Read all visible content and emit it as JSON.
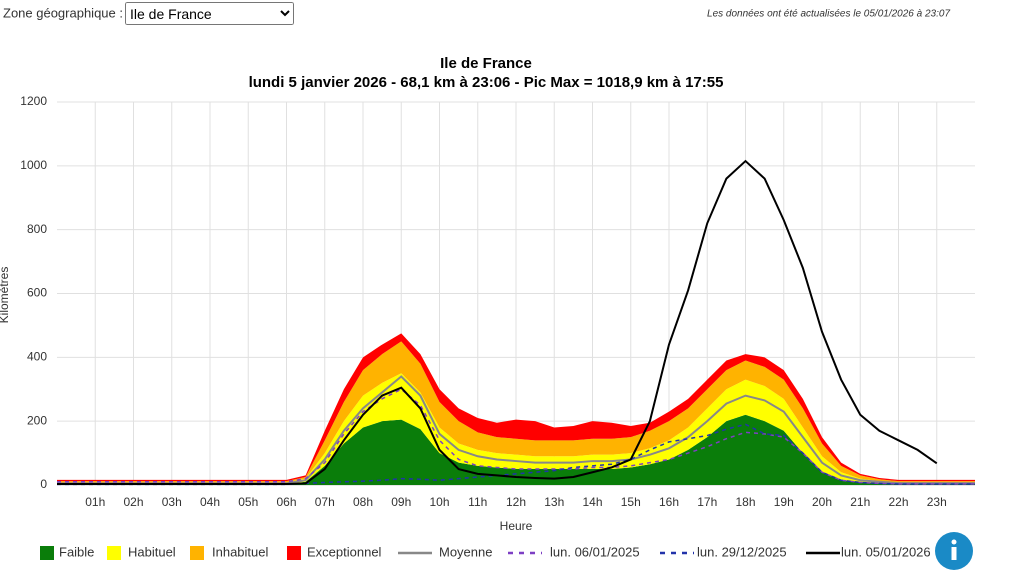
{
  "header": {
    "zone_label": "Zone géographique :",
    "zone_value": "Ile de France",
    "updated": "Les données ont été actualisées le 05/01/2026 à 23:07"
  },
  "chart_data": {
    "type": "line",
    "title": "Ile de France",
    "subtitle": "lundi 5 janvier 2026 - 68,1 km à 23:06 - Pic Max = 1018,9 km à 17:55",
    "x_label": "Heure",
    "y_label": "Kilomètres",
    "xlim": [
      0,
      24
    ],
    "ylim": [
      0,
      1200
    ],
    "yticks": [
      0,
      200,
      400,
      600,
      800,
      1000,
      1200
    ],
    "grid": true,
    "xticks": [
      {
        "value": 1,
        "label": "01h"
      },
      {
        "value": 2,
        "label": "02h"
      },
      {
        "value": 3,
        "label": "03h"
      },
      {
        "value": 4,
        "label": "04h"
      },
      {
        "value": 5,
        "label": "05h"
      },
      {
        "value": 6,
        "label": "06h"
      },
      {
        "value": 7,
        "label": "07h"
      },
      {
        "value": 8,
        "label": "08h"
      },
      {
        "value": 9,
        "label": "09h"
      },
      {
        "value": 10,
        "label": "10h"
      },
      {
        "value": 11,
        "label": "11h"
      },
      {
        "value": 12,
        "label": "12h"
      },
      {
        "value": 13,
        "label": "13h"
      },
      {
        "value": 14,
        "label": "14h"
      },
      {
        "value": 15,
        "label": "15h"
      },
      {
        "value": 16,
        "label": "16h"
      },
      {
        "value": 17,
        "label": "17h"
      },
      {
        "value": 18,
        "label": "18h"
      },
      {
        "value": 19,
        "label": "19h"
      },
      {
        "value": 20,
        "label": "20h"
      },
      {
        "value": 21,
        "label": "21h"
      },
      {
        "value": 22,
        "label": "22h"
      },
      {
        "value": 23,
        "label": "23h"
      }
    ],
    "x": [
      0,
      0.5,
      1,
      1.5,
      2,
      2.5,
      3,
      3.5,
      4,
      4.5,
      5,
      5.5,
      6,
      6.5,
      7,
      7.5,
      8,
      8.5,
      9,
      9.5,
      10,
      10.5,
      11,
      11.5,
      12,
      12.5,
      13,
      13.5,
      14,
      14.5,
      15,
      15.5,
      16,
      16.5,
      17,
      17.5,
      18,
      18.5,
      19,
      19.5,
      20,
      20.5,
      21,
      21.5,
      22,
      22.5,
      23,
      23.5,
      24
    ],
    "series": [
      {
        "name": "Faible",
        "color": "#0a7d0a",
        "kind": "area",
        "values": [
          3,
          3,
          3,
          3,
          3,
          3,
          3,
          3,
          3,
          3,
          3,
          3,
          3,
          10,
          60,
          130,
          180,
          200,
          205,
          175,
          100,
          70,
          60,
          55,
          50,
          50,
          50,
          50,
          50,
          50,
          55,
          65,
          80,
          110,
          150,
          200,
          220,
          200,
          170,
          100,
          40,
          15,
          8,
          5,
          3,
          3,
          3,
          3,
          3
        ]
      },
      {
        "name": "Habituel",
        "color": "#ffff00",
        "kind": "area",
        "values": [
          5,
          5,
          5,
          5,
          5,
          5,
          5,
          5,
          5,
          5,
          5,
          5,
          5,
          10,
          40,
          70,
          100,
          120,
          145,
          115,
          80,
          60,
          50,
          45,
          45,
          40,
          40,
          40,
          45,
          45,
          45,
          50,
          60,
          70,
          90,
          100,
          110,
          110,
          100,
          80,
          50,
          25,
          12,
          7,
          5,
          5,
          5,
          5,
          5
        ]
      },
      {
        "name": "Inhabituel",
        "color": "#ffb300",
        "kind": "area",
        "values": [
          4,
          4,
          4,
          4,
          4,
          4,
          4,
          4,
          4,
          4,
          4,
          4,
          4,
          5,
          40,
          60,
          80,
          90,
          100,
          90,
          80,
          70,
          55,
          50,
          50,
          50,
          50,
          50,
          50,
          50,
          50,
          55,
          60,
          60,
          60,
          60,
          60,
          60,
          60,
          60,
          40,
          20,
          10,
          6,
          4,
          4,
          4,
          4,
          4
        ]
      },
      {
        "name": "Exceptionnel",
        "color": "#ff0000",
        "kind": "area",
        "values": [
          4,
          4,
          4,
          4,
          4,
          4,
          4,
          4,
          4,
          4,
          4,
          4,
          4,
          5,
          30,
          40,
          40,
          30,
          25,
          30,
          40,
          40,
          45,
          45,
          60,
          60,
          40,
          45,
          55,
          50,
          35,
          25,
          30,
          30,
          30,
          30,
          20,
          30,
          30,
          30,
          20,
          10,
          5,
          4,
          4,
          4,
          4,
          4,
          4
        ]
      },
      {
        "name": "Moyenne",
        "color": "#888888",
        "kind": "line",
        "values": [
          5,
          5,
          5,
          5,
          5,
          5,
          5,
          5,
          5,
          5,
          5,
          5,
          5,
          15,
          80,
          170,
          240,
          290,
          340,
          280,
          160,
          110,
          90,
          80,
          75,
          70,
          70,
          70,
          75,
          75,
          80,
          95,
          115,
          150,
          200,
          255,
          280,
          265,
          230,
          150,
          70,
          30,
          15,
          10,
          6,
          6,
          6,
          6,
          6
        ]
      },
      {
        "name": "lun. 06/01/2025",
        "color": "#7d3fc4",
        "kind": "line",
        "dash": true,
        "values": [
          10,
          10,
          10,
          10,
          10,
          10,
          10,
          10,
          10,
          10,
          10,
          10,
          10,
          20,
          70,
          160,
          230,
          270,
          300,
          250,
          140,
          80,
          60,
          55,
          50,
          50,
          50,
          50,
          55,
          55,
          60,
          70,
          80,
          100,
          120,
          145,
          165,
          160,
          150,
          100,
          40,
          15,
          8,
          5,
          3,
          3,
          3,
          3,
          3
        ]
      },
      {
        "name": "lun. 29/12/2025",
        "color": "#2233aa",
        "kind": "line",
        "dash": true,
        "values": [
          2,
          2,
          2,
          2,
          2,
          2,
          2,
          2,
          2,
          2,
          2,
          2,
          2,
          5,
          8,
          10,
          12,
          15,
          20,
          18,
          15,
          20,
          25,
          30,
          35,
          40,
          45,
          55,
          60,
          65,
          80,
          110,
          135,
          145,
          155,
          175,
          190,
          160,
          155,
          100,
          40,
          15,
          8,
          5,
          3,
          3,
          3,
          3,
          3
        ]
      },
      {
        "name": "lun. 05/01/2026",
        "color": "#000000",
        "kind": "line",
        "values": [
          3,
          3,
          3,
          3,
          3,
          3,
          3,
          3,
          3,
          3,
          3,
          3,
          3,
          5,
          50,
          140,
          220,
          280,
          305,
          240,
          110,
          50,
          35,
          30,
          25,
          22,
          20,
          25,
          40,
          55,
          80,
          200,
          440,
          610,
          820,
          960,
          1015,
          960,
          830,
          680,
          480,
          330,
          220,
          170,
          140,
          110,
          68.1,
          null,
          null
        ]
      }
    ]
  }
}
